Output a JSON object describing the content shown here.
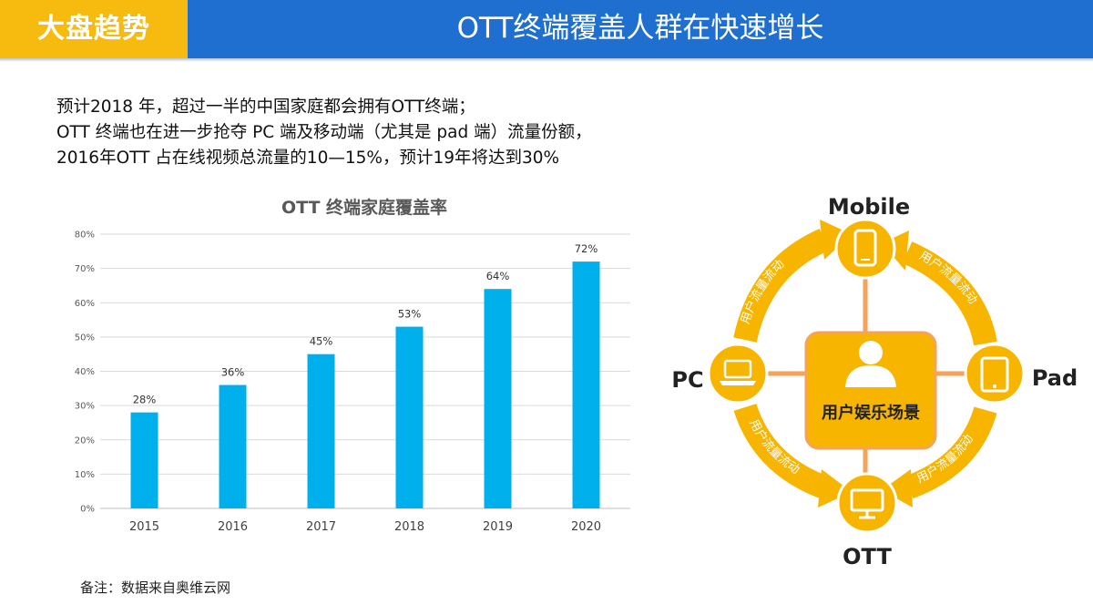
{
  "header": {
    "tab_label": "大盘趋势",
    "title": "OTT终端覆盖人群在快速增长",
    "colors": {
      "bar": "#1e6fd0",
      "tab": "#f7bb10"
    }
  },
  "intro": {
    "lines": [
      "预计2018 年，超过一半的中国家庭都会拥有OTT终端；",
      "OTT 终端也在进一步抢夺 PC 端及移动端（尤其是 pad 端）流量份额，",
      "2016年OTT 占在线视频总流量的10—15%，预计19年将达到30%"
    ]
  },
  "chart_data": {
    "type": "bar",
    "title": "OTT 终端家庭覆盖率",
    "categories": [
      "2015",
      "2016",
      "2017",
      "2018",
      "2019",
      "2020"
    ],
    "values": [
      28,
      36,
      45,
      53,
      64,
      72
    ],
    "value_labels": [
      "28%",
      "36%",
      "45%",
      "53%",
      "64%",
      "72%"
    ],
    "ylim": [
      0,
      80
    ],
    "yticks": [
      0,
      10,
      20,
      30,
      40,
      50,
      60,
      70,
      80
    ],
    "ytick_labels": [
      "0%",
      "10%",
      "20%",
      "30%",
      "40%",
      "50%",
      "60%",
      "70%",
      "80%"
    ],
    "grid": true,
    "bar_color": "#00b0ec"
  },
  "diagram": {
    "center_label": "用户娱乐场景",
    "nodes": {
      "top": "Mobile",
      "left": "PC",
      "right": "Pad",
      "bottom": "OTT"
    },
    "arrow_label": "用户流量流动",
    "icons": {
      "center": "user-icon",
      "top": "smartphone-icon",
      "left": "laptop-icon",
      "right": "tablet-icon",
      "bottom": "monitor-icon"
    },
    "colors": {
      "orange": "#f7b500",
      "link": "#f5a25a"
    }
  },
  "footer": {
    "note": "备注：数据来自奥维云网"
  }
}
